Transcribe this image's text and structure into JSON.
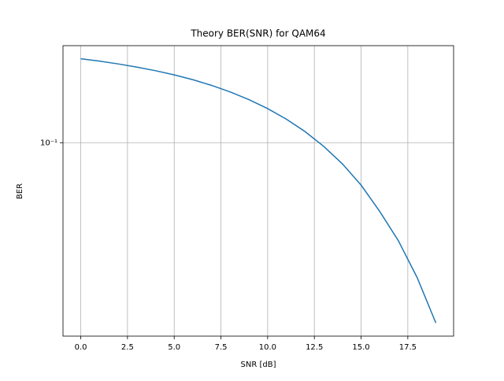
{
  "chart_data": {
    "type": "line",
    "title": "Theory BER(SNR) for QAM64",
    "x_label": "SNR [dB]",
    "y_label": "BER",
    "x": [
      0,
      1,
      2,
      3,
      4,
      5,
      6,
      7,
      8,
      9,
      10,
      11,
      12,
      13,
      14,
      15,
      16,
      17,
      18,
      19
    ],
    "series": [
      {
        "name": "BER",
        "color": "#1f77b4",
        "values": [
          0.2413,
          0.2353,
          0.2285,
          0.221,
          0.2128,
          0.2036,
          0.1936,
          0.1824,
          0.1703,
          0.1571,
          0.143,
          0.128,
          0.1124,
          0.0962,
          0.0801,
          0.0641,
          0.0486,
          0.0357,
          0.0243,
          0.0151
        ]
      }
    ],
    "xlim": [
      -0.95,
      19.95
    ],
    "xticks": [
      {
        "value": 0,
        "label": "0.0"
      },
      {
        "value": 2.5,
        "label": "2.5"
      },
      {
        "value": 5,
        "label": "5.0"
      },
      {
        "value": 7.5,
        "label": "7.5"
      },
      {
        "value": 10,
        "label": "10.0"
      },
      {
        "value": 12.5,
        "label": "12.5"
      },
      {
        "value": 15,
        "label": "15.0"
      },
      {
        "value": 17.5,
        "label": "17.5"
      }
    ],
    "ylim": [
      0.01315,
      0.2767
    ],
    "y_scale": "log",
    "yticks": [
      {
        "value": 0.1,
        "label": "10⁻¹"
      }
    ],
    "grid": true
  }
}
